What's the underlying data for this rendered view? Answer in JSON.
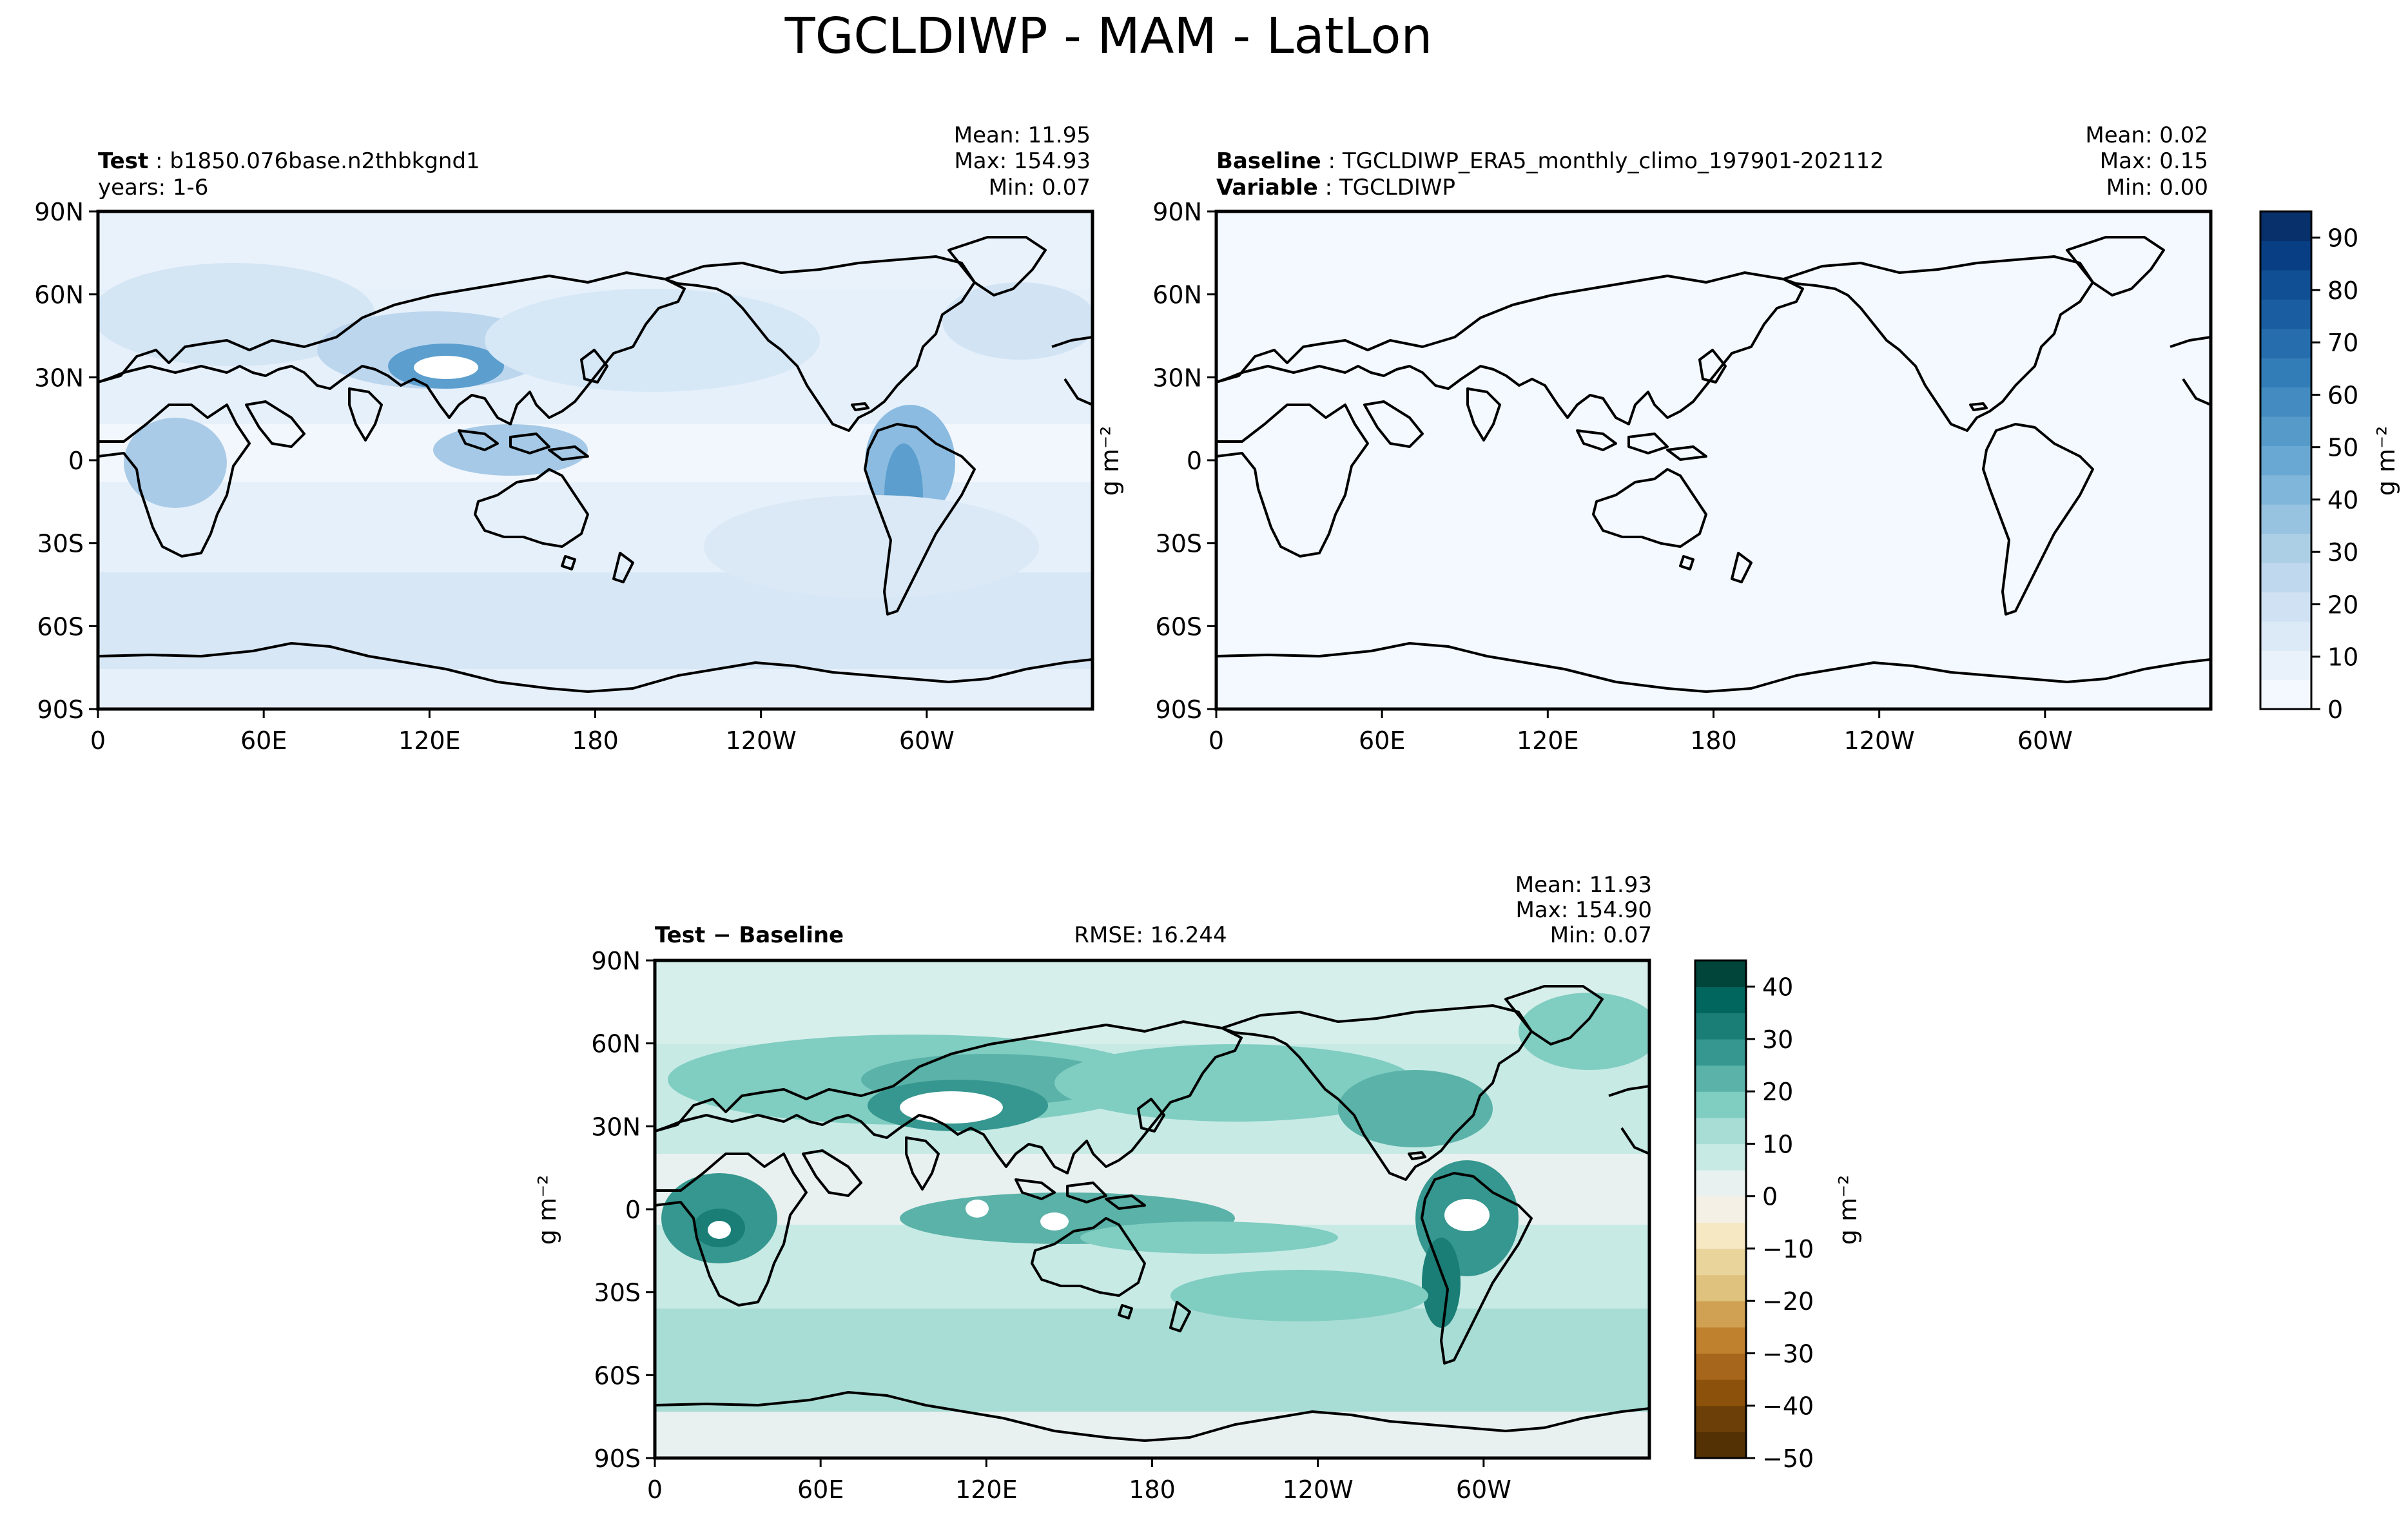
{
  "figure": {
    "title": "TGCLDIWP - MAM - LatLon"
  },
  "panels": {
    "test": {
      "label_key": "Test",
      "label_value": "b1850.076base.n2thbkgnd1",
      "line2": "years: 1-6",
      "stats": {
        "mean": "Mean: 11.95",
        "max": "Max: 154.93",
        "min": "Min:  0.07"
      }
    },
    "baseline": {
      "label_key": "Baseline",
      "label_value": "TGCLDIWP_ERA5_monthly_climo_197901-202112",
      "line2_key": "Variable",
      "line2_value": "TGCLDIWP",
      "stats": {
        "mean": "Mean:  0.02",
        "max": "Max:  0.15",
        "min": "Min:  0.00"
      }
    },
    "diff": {
      "label": "Test − Baseline",
      "rmse": "RMSE: 16.244",
      "stats": {
        "mean": "Mean: 11.93",
        "max": "Max: 154.90",
        "min": "Min:  0.07"
      }
    }
  },
  "axes": {
    "lon_ticks": [
      "0",
      "60E",
      "120E",
      "180",
      "120W",
      "60W"
    ],
    "lat_ticks": [
      "90N",
      "60N",
      "30N",
      "0",
      "30S",
      "60S",
      "90S"
    ],
    "unit_label": "g m⁻²"
  },
  "colorbars": {
    "blues": {
      "ticks": [
        "0",
        "10",
        "20",
        "30",
        "40",
        "50",
        "60",
        "70",
        "80",
        "90"
      ],
      "range": [
        0,
        95
      ],
      "colors": [
        "#f4f9ff",
        "#e9f2fb",
        "#dce9f6",
        "#cfe1f2",
        "#bfd8ed",
        "#adcfe6",
        "#97c3e0",
        "#80b6d9",
        "#69a8d2",
        "#559ac9",
        "#438bc0",
        "#327cb7",
        "#256dad",
        "#1a5ea1",
        "#104f93",
        "#083f84",
        "#08306b"
      ]
    },
    "brbg": {
      "ticks": [
        "40",
        "30",
        "20",
        "10",
        "0",
        "−10",
        "−20",
        "−30",
        "−40",
        "−50"
      ],
      "range": [
        -50,
        45
      ],
      "colors": [
        "#543005",
        "#6b3f07",
        "#8c510a",
        "#a6661b",
        "#bf812d",
        "#d0a153",
        "#dfc27d",
        "#e9d49c",
        "#f6e8c3",
        "#f5f0e6",
        "#e8f1ef",
        "#c7eae5",
        "#a8ddd5",
        "#80cdc1",
        "#5ab2a8",
        "#35978f",
        "#1a7e76",
        "#01665e",
        "#00443a"
      ]
    }
  },
  "chart_data": [
    {
      "type": "heatmap",
      "title": "Test: b1850.076base.n2thbkgnd1",
      "variable": "TGCLDIWP",
      "season": "MAM",
      "mean": 11.95,
      "max": 154.93,
      "min": 0.07,
      "colorbar_range": [
        0,
        95
      ],
      "unit": "g m⁻²",
      "x_ticks": [
        "0",
        "60E",
        "120E",
        "180",
        "120W",
        "60W"
      ],
      "y_ticks": [
        "90N",
        "60N",
        "30N",
        "0",
        "30S",
        "60S",
        "90S"
      ]
    },
    {
      "type": "heatmap",
      "title": "Baseline: TGCLDIWP_ERA5_monthly_climo_197901-202112",
      "variable": "TGCLDIWP",
      "mean": 0.02,
      "max": 0.15,
      "min": 0.0,
      "colorbar_range": [
        0,
        95
      ],
      "unit": "g m⁻²"
    },
    {
      "type": "heatmap",
      "title": "Test − Baseline",
      "rmse": 16.244,
      "mean": 11.93,
      "max": 154.9,
      "min": 0.07,
      "colorbar_range": [
        -50,
        45
      ],
      "unit": "g m⁻²"
    }
  ]
}
